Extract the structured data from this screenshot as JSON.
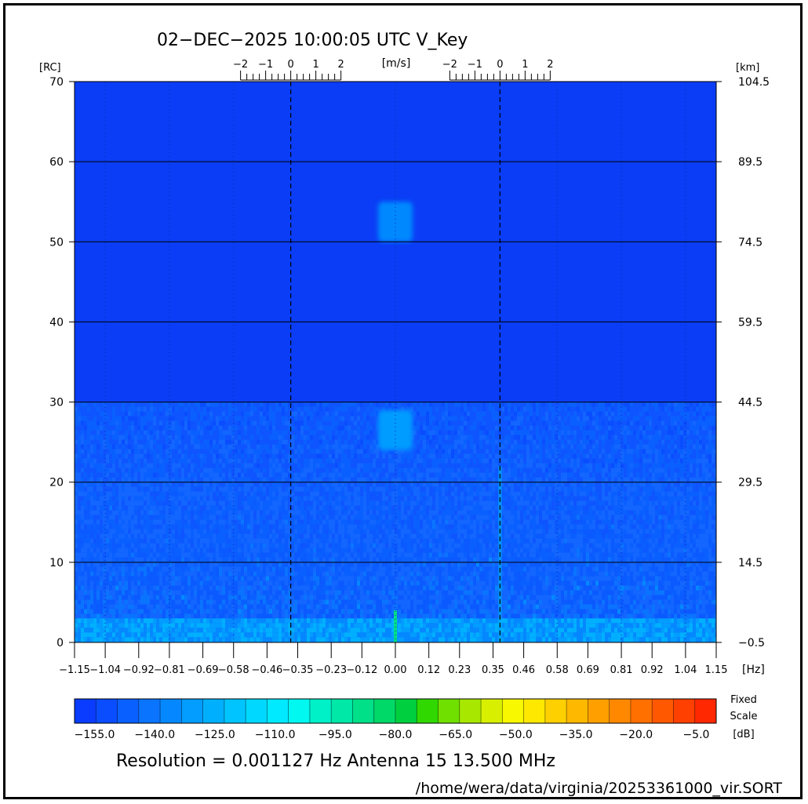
{
  "header": {
    "title": "02−DEC−2025 10:00:05 UTC   V_Key"
  },
  "footer": {
    "resolution": "Resolution = 0.001127 Hz   Antenna 15   13.500 MHz",
    "path": "/home/wera/data/virginia/20253361000_vir.SORT"
  },
  "colors": {
    "background": "#1040ff",
    "upper_field": "#0a3df5",
    "lower_field": "#0f55ff",
    "grid": "#000000"
  },
  "chart_data": {
    "type": "heatmap",
    "title": "02−DEC−2025 10:00:05 UTC   V_Key",
    "left_axis": {
      "label": "[RC]",
      "range": [
        0,
        70
      ],
      "ticks": [
        0,
        10,
        20,
        30,
        40,
        50,
        60,
        70
      ],
      "tick_labels": [
        "0",
        "10",
        "20",
        "30",
        "40",
        "50",
        "60",
        "70"
      ]
    },
    "right_axis": {
      "label": "[km]",
      "range": [
        -0.5,
        104.5
      ],
      "ticks": [
        -0.5,
        14.5,
        29.5,
        44.5,
        59.5,
        74.5,
        89.5,
        104.5
      ],
      "tick_labels": [
        "−0.5",
        "14.5",
        "29.5",
        "44.5",
        "59.5",
        "74.5",
        "89.5",
        "104.5"
      ]
    },
    "x_axis": {
      "label": "[Hz]",
      "range": [
        -1.15,
        1.15
      ],
      "ticks": [
        -1.15,
        -1.04,
        -0.92,
        -0.81,
        -0.69,
        -0.58,
        -0.46,
        -0.35,
        -0.23,
        -0.12,
        0.0,
        0.12,
        0.23,
        0.35,
        0.46,
        0.58,
        0.69,
        0.81,
        0.92,
        1.04,
        1.15
      ],
      "tick_labels": [
        "−1.15",
        "−1.04",
        "−0.92",
        "−0.81",
        "−0.69",
        "−0.58",
        "−0.46",
        "−0.35",
        "−0.23",
        "−0.12",
        "0.00",
        "0.12",
        "0.23",
        "0.35",
        "0.46",
        "0.58",
        "0.69",
        "0.81",
        "0.92",
        "1.04",
        "1.15"
      ]
    },
    "velocity_axes": {
      "label": "[m/s]",
      "scales": [
        {
          "center_hz": -0.375,
          "ticks": [
            -2,
            -1,
            0,
            1,
            2
          ],
          "tick_labels": [
            "−2",
            "−1",
            "0",
            "1",
            "2"
          ]
        },
        {
          "center_hz": 0.375,
          "ticks": [
            -2,
            -1,
            0,
            1,
            2
          ],
          "tick_labels": [
            "−2",
            "−1",
            "0",
            "1",
            "2"
          ]
        }
      ]
    },
    "dashed_lines_hz": [
      -0.375,
      0.375
    ],
    "dotted_lines_hz": [
      -1.04,
      -0.81,
      -0.58,
      0.0,
      0.58,
      0.81,
      1.04
    ],
    "grid_rc": [
      10,
      20,
      30,
      40,
      50,
      60
    ],
    "noise_boundary_rc": 30,
    "features": [
      {
        "hz": 0.0,
        "rc_min": 50,
        "rc_max": 55,
        "db": -137
      },
      {
        "hz": 0.0,
        "rc_min": 24,
        "rc_max": 29,
        "db": -132
      },
      {
        "hz": 0.0,
        "rc_min": 0,
        "rc_max": 4,
        "db": -88
      },
      {
        "hz": 0.375,
        "rc_min": 0,
        "rc_max": 22,
        "db": -128
      }
    ],
    "colorbar": {
      "min_db": -160,
      "max_db": 0,
      "tick_values": [
        -155,
        -140,
        -125,
        -110,
        -95,
        -80,
        -65,
        -50,
        -35,
        -20,
        -5
      ],
      "tick_labels": [
        "−155.0",
        "−140.0",
        "−125.0",
        "−110.0",
        "−95.0",
        "−80.0",
        "−65.0",
        "−50.0",
        "−35.0",
        "−20.0",
        "−5.0"
      ],
      "label_line1": "Fixed",
      "label_line2": "Scale",
      "unit": "[dB]",
      "colors": [
        "#0a3cff",
        "#0a4dff",
        "#0a60ff",
        "#0a74ff",
        "#0588ff",
        "#039cff",
        "#00b0ff",
        "#00c4ff",
        "#00d8ff",
        "#00eaff",
        "#00f8f0",
        "#00f0c8",
        "#00e8a8",
        "#00e088",
        "#00d868",
        "#00d040",
        "#30d800",
        "#70e000",
        "#a8e800",
        "#d8f000",
        "#f8f800",
        "#ffe800",
        "#ffd000",
        "#ffb800",
        "#ffa000",
        "#ff8800",
        "#ff7000",
        "#ff5800",
        "#ff4000",
        "#ff2800"
      ]
    }
  }
}
